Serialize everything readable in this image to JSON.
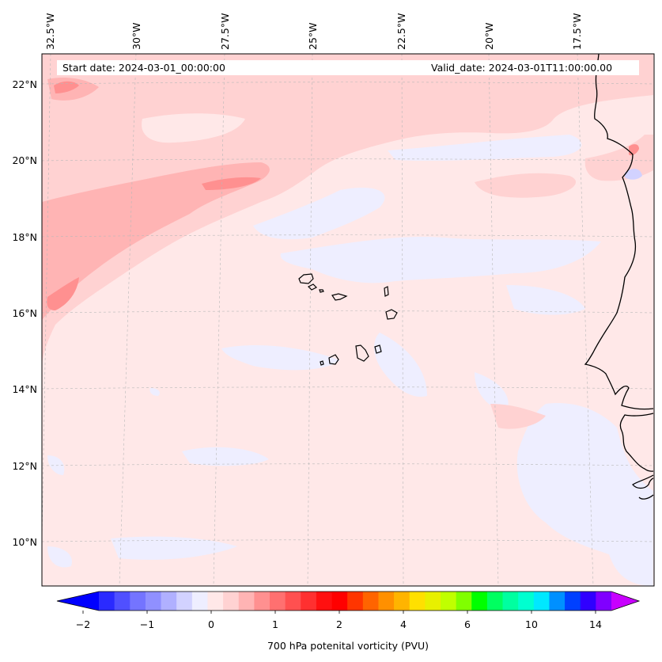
{
  "header": {
    "start_date": "Start date: 2024-03-01_00:00:00",
    "valid_date": "Valid_date: 2024-03-01T11:00:00.00"
  },
  "map": {
    "lon_labels": [
      "32.5°W",
      "30°W",
      "27.5°W",
      "25°W",
      "22.5°W",
      "20°W",
      "17.5°W"
    ],
    "lat_labels": [
      "22°N",
      "20°N",
      "18°N",
      "16°N",
      "14°N",
      "12°N",
      "10°N"
    ],
    "colors": {
      "background": "#ffe8e8",
      "light_pink": "#ffd2d2",
      "pink": "#ffb4b4",
      "deep_pink": "#ff9090",
      "light_blue": "#eeeeff",
      "blue": "#d2d2ff",
      "coastline": "#000000"
    }
  },
  "colorbar": {
    "tick_labels": [
      "−2",
      "−1",
      "0",
      "1",
      "2",
      "4",
      "6",
      "10",
      "14"
    ],
    "label": "700 hPa potenital vorticity (PVU)",
    "colors": [
      "#0000ff",
      "#2a2aff",
      "#5050ff",
      "#7474ff",
      "#9090ff",
      "#b0b0ff",
      "#d2d2ff",
      "#eeeeff",
      "#ffe8e8",
      "#ffd2d2",
      "#ffb4b4",
      "#ff9090",
      "#ff7070",
      "#ff5050",
      "#ff3030",
      "#ff1010",
      "#ff0000",
      "#ff3500",
      "#ff6400",
      "#ff9000",
      "#ffb400",
      "#ffe000",
      "#e8f000",
      "#c0ff00",
      "#80ff00",
      "#00ff00",
      "#00ff60",
      "#00ffa0",
      "#00ffd0",
      "#00e8ff",
      "#0090ff",
      "#0040ff",
      "#3000ff",
      "#8000ff",
      "#c800ff"
    ]
  }
}
